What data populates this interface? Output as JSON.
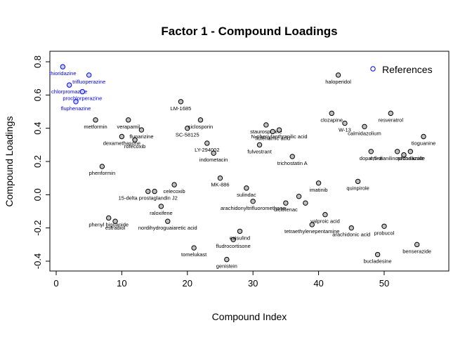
{
  "chart_data": {
    "type": "scatter",
    "title": "Factor 1 - Compound Loadings",
    "xlabel": "Compound Index",
    "ylabel": "Compound Loadings",
    "xlim": [
      0,
      57
    ],
    "ylim": [
      -0.4,
      0.8
    ],
    "xticks": [
      0,
      10,
      20,
      30,
      40,
      50
    ],
    "yticks": [
      -0.4,
      -0.2,
      0.0,
      0.2,
      0.4,
      0.6,
      0.8
    ],
    "legend": {
      "label": "References",
      "color": "#0000ff",
      "placement": "top-right"
    },
    "colors": {
      "reference": "#0000ff",
      "compound": "#000000",
      "compound_fill": "#bfbfbf",
      "reference_fill": "#c8d0ff"
    },
    "points": [
      {
        "x": 1,
        "y": 0.77,
        "label": "thioridazine",
        "ref": true
      },
      {
        "x": 2,
        "y": 0.66,
        "label": "chlorpromazine",
        "ref": true
      },
      {
        "x": 3,
        "y": 0.56,
        "label": "fluphenazine",
        "ref": true
      },
      {
        "x": 4,
        "y": 0.62,
        "label": "prochlorperazine",
        "ref": true
      },
      {
        "x": 5,
        "y": 0.72,
        "label": "trifluoperazine",
        "ref": true
      },
      {
        "x": 6,
        "y": 0.45,
        "label": "metformin",
        "ref": false
      },
      {
        "x": 7,
        "y": 0.17,
        "label": "phenformin",
        "ref": false
      },
      {
        "x": 8,
        "y": -0.14,
        "label": "phenyl biguanide",
        "ref": false
      },
      {
        "x": 9,
        "y": -0.16,
        "label": "estradiol",
        "ref": false
      },
      {
        "x": 10,
        "y": 0.35,
        "label": "dexamethasone",
        "ref": false
      },
      {
        "x": 11,
        "y": 0.45,
        "label": "verapamil",
        "ref": false
      },
      {
        "x": 12,
        "y": 0.33,
        "label": "rofecoxib",
        "ref": false
      },
      {
        "x": 13,
        "y": 0.39,
        "label": "flunarizine",
        "ref": false
      },
      {
        "x": 14,
        "y": 0.02,
        "label": "15-delta prostaglandin J2",
        "ref": false
      },
      {
        "x": 15,
        "y": 0.02,
        "label": "",
        "ref": false
      },
      {
        "x": 16,
        "y": -0.07,
        "label": "raloxifene",
        "ref": false
      },
      {
        "x": 17,
        "y": -0.16,
        "label": "nordihydroguaiaretic acid",
        "ref": false
      },
      {
        "x": 18,
        "y": 0.06,
        "label": "celecoxib",
        "ref": false
      },
      {
        "x": 19,
        "y": 0.56,
        "label": "LM-1685",
        "ref": false
      },
      {
        "x": 20,
        "y": 0.4,
        "label": "SC-58125",
        "ref": false
      },
      {
        "x": 21,
        "y": -0.32,
        "label": "tomelukast",
        "ref": false
      },
      {
        "x": 22,
        "y": 0.45,
        "label": "ciclosporin",
        "ref": false
      },
      {
        "x": 23,
        "y": 0.31,
        "label": "LY-294002",
        "ref": false
      },
      {
        "x": 24,
        "y": 0.25,
        "label": "indometacin",
        "ref": false
      },
      {
        "x": 25,
        "y": 0.1,
        "label": "MK-886",
        "ref": false
      },
      {
        "x": 26,
        "y": -0.39,
        "label": "genistein",
        "ref": false
      },
      {
        "x": 27,
        "y": -0.27,
        "label": "fludrocortisone",
        "ref": false
      },
      {
        "x": 28,
        "y": -0.22,
        "label": "exisulind",
        "ref": false
      },
      {
        "x": 29,
        "y": 0.04,
        "label": "sulindac",
        "ref": false
      },
      {
        "x": 30,
        "y": -0.04,
        "label": "arachidonyltrifluoromethane",
        "ref": false
      },
      {
        "x": 31,
        "y": 0.3,
        "label": "fulvestrant",
        "ref": false
      },
      {
        "x": 32,
        "y": 0.42,
        "label": "staurosporine",
        "ref": false
      },
      {
        "x": 33,
        "y": 0.38,
        "label": "flufenamic acid",
        "ref": false
      },
      {
        "x": 34,
        "y": 0.39,
        "label": "N-phenylanthranilic acid",
        "ref": false
      },
      {
        "x": 35,
        "y": -0.05,
        "label": "diclofenac",
        "ref": false
      },
      {
        "x": 36,
        "y": 0.23,
        "label": "trichostatin A",
        "ref": false
      },
      {
        "x": 37,
        "y": -0.01,
        "label": "",
        "ref": false
      },
      {
        "x": 38,
        "y": -0.05,
        "label": "",
        "ref": false
      },
      {
        "x": 39,
        "y": -0.18,
        "label": "tetraethylenepentamine",
        "ref": false
      },
      {
        "x": 40,
        "y": 0.07,
        "label": "imatinib",
        "ref": false
      },
      {
        "x": 41,
        "y": -0.12,
        "label": "valproic acid",
        "ref": false
      },
      {
        "x": 42,
        "y": 0.49,
        "label": "clozapine",
        "ref": false
      },
      {
        "x": 43,
        "y": 0.72,
        "label": "haloperidol",
        "ref": false
      },
      {
        "x": 44,
        "y": 0.43,
        "label": "W-13",
        "ref": false
      },
      {
        "x": 45,
        "y": -0.2,
        "label": "arachidonic acid",
        "ref": false
      },
      {
        "x": 46,
        "y": 0.08,
        "label": "quinpirole",
        "ref": false
      },
      {
        "x": 47,
        "y": 0.41,
        "label": "calmidazolium",
        "ref": false
      },
      {
        "x": 48,
        "y": 0.26,
        "label": "dopamine",
        "ref": false
      },
      {
        "x": 49,
        "y": -0.36,
        "label": "bucladesine",
        "ref": false
      },
      {
        "x": 50,
        "y": -0.19,
        "label": "probucol",
        "ref": false
      },
      {
        "x": 51,
        "y": 0.49,
        "label": "resveratrol",
        "ref": false
      },
      {
        "x": 52,
        "y": 0.26,
        "label": "4,5-dianilinophthalimide",
        "ref": false
      },
      {
        "x": 53,
        "y": 0.24,
        "label": "",
        "ref": false
      },
      {
        "x": 54,
        "y": 0.26,
        "label": "nocodazole",
        "ref": false
      },
      {
        "x": 55,
        "y": -0.3,
        "label": "benserazide",
        "ref": false
      },
      {
        "x": 56,
        "y": 0.35,
        "label": "tioguanine",
        "ref": false
      }
    ]
  }
}
